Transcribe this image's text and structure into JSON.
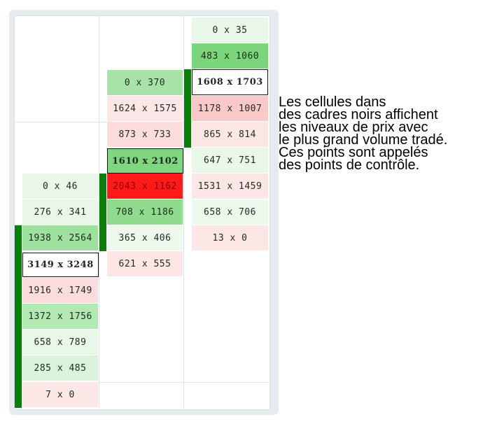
{
  "annotation": {
    "lines": [
      "Les cellules dans",
      "des cadres noirs affichent",
      "les niveaux de prix avec",
      "le plus grand volume tradé.",
      "Ces points sont appelés",
      "des points de contrôle."
    ]
  },
  "columns": [
    {
      "cells": [
        {
          "text": "0 x 46",
          "bg": "#e8f7e8"
        },
        {
          "text": "276 x 341",
          "bg": "#e8f7e8"
        },
        {
          "text": "1938 x 2564",
          "bg": "#9ee09e"
        },
        {
          "text": "3149 x 3248",
          "bg": "#ffffff",
          "poc": true
        },
        {
          "text": "1916 x 1749",
          "bg": "#fcdcdc"
        },
        {
          "text": "1372 x 1756",
          "bg": "#b2e8b2"
        },
        {
          "text": "658 x 789",
          "bg": "#e8f7e8"
        },
        {
          "text": "285 x 485",
          "bg": "#dbf3db"
        },
        {
          "text": "7 x 0",
          "bg": "#fde6e6"
        }
      ]
    },
    {
      "cells": [
        {
          "text": "0 x 370",
          "bg": "#a8e2a8"
        },
        {
          "text": "1624 x 1575",
          "bg": "#fde6e6"
        },
        {
          "text": "873 x 733",
          "bg": "#fcdcdc"
        },
        {
          "text": "1610 x 2102",
          "bg": "#80d680",
          "poc": true
        },
        {
          "text": "2043 x 1162",
          "bg": "#ff1a1a"
        },
        {
          "text": "708 x 1186",
          "bg": "#8fdc8f"
        },
        {
          "text": "365 x 406",
          "bg": "#eef9ee"
        },
        {
          "text": "621 x 555",
          "bg": "#fde6e6"
        }
      ]
    },
    {
      "cells": [
        {
          "text": "0 x 35",
          "bg": "#e8f7e8"
        },
        {
          "text": "483 x 1060",
          "bg": "#7bd67b"
        },
        {
          "text": "1608 x 1703",
          "bg": "#ffffff",
          "poc": true
        },
        {
          "text": "1178 x 1007",
          "bg": "#f9c8c8"
        },
        {
          "text": "865 x 814",
          "bg": "#fde6e6"
        },
        {
          "text": "647 x 751",
          "bg": "#e8f7e8"
        },
        {
          "text": "1531 x 1459",
          "bg": "#fde6e6"
        },
        {
          "text": "658 x 706",
          "bg": "#eef9ee"
        },
        {
          "text": "13 x 0",
          "bg": "#fde6e6"
        }
      ]
    }
  ]
}
